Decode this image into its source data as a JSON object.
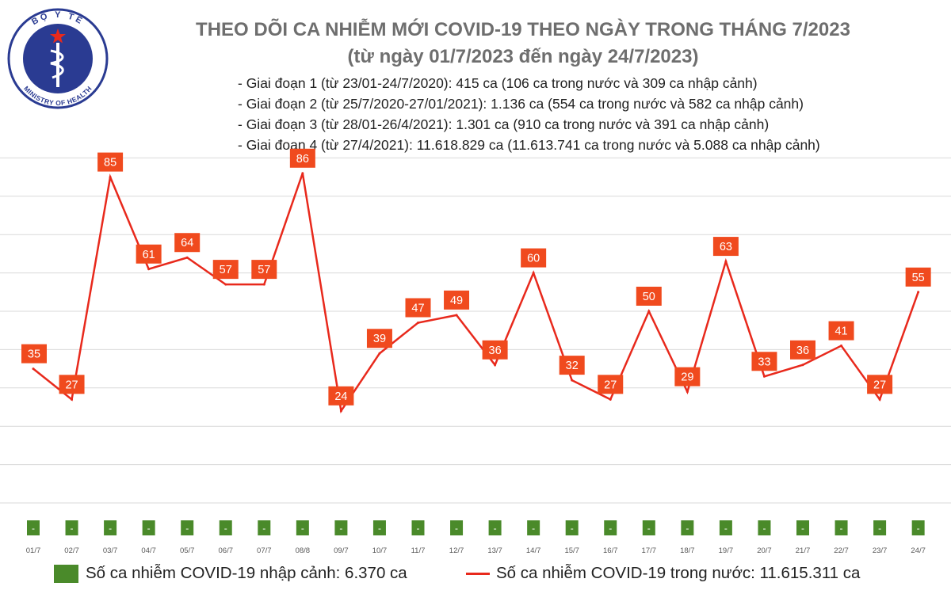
{
  "header": {
    "title": "THEO DÕI CA NHIỄM MỚI COVID-19 THEO NGÀY TRONG THÁNG 7/2023",
    "subtitle": "(từ ngày 01/7/2023 đến ngày 24/7/2023)",
    "phases": [
      "- Giai đoạn 1 (từ 23/01-24/7/2020): 415 ca (106 ca trong nước và 309 ca nhập cảnh)",
      "- Giai đoạn 2 (từ 25/7/2020-27/01/2021): 1.136 ca (554 ca trong nước và 582 ca nhập cảnh)",
      "- Giai đoạn 3 (từ 28/01-26/4/2021): 1.301 ca (910 ca trong nước và 391 ca nhập cảnh)",
      "- Giai đoạn 4 (từ 27/4/2021): 11.618.829 ca (11.613.741 ca trong nước và 5.088 ca nhập cảnh)"
    ]
  },
  "logo": {
    "top_text": "BỘ Y TẾ",
    "bottom_text": "MINISTRY OF HEALTH"
  },
  "chart_data": {
    "type": "line",
    "x": [
      "01/7",
      "02/7",
      "03/7",
      "04/7",
      "05/7",
      "06/7",
      "07/7",
      "08/8",
      "09/7",
      "10/7",
      "11/7",
      "12/7",
      "13/7",
      "14/7",
      "15/7",
      "16/7",
      "17/7",
      "18/7",
      "19/7",
      "20/7",
      "21/7",
      "22/7",
      "23/7",
      "24/7"
    ],
    "series": [
      {
        "name": "Số ca nhiễm COVID-19 trong nước: 11.615.311 ca",
        "type": "line",
        "values": [
          35,
          27,
          85,
          61,
          64,
          57,
          57,
          86,
          24,
          39,
          47,
          49,
          36,
          60,
          32,
          27,
          50,
          29,
          63,
          33,
          36,
          41,
          27,
          55
        ]
      },
      {
        "name": "Số ca nhiễm COVID-19 nhập cảnh: 6.370 ca",
        "type": "bar",
        "values": [
          0,
          0,
          0,
          0,
          0,
          0,
          0,
          0,
          0,
          0,
          0,
          0,
          0,
          0,
          0,
          0,
          0,
          0,
          0,
          0,
          0,
          0,
          0,
          0
        ],
        "labels": [
          "-",
          "-",
          "-",
          "-",
          "-",
          "-",
          "-",
          "-",
          "-",
          "-",
          "-",
          "-",
          "-",
          "-",
          "-",
          "-",
          "-",
          "-",
          "-",
          "-",
          "-",
          "-",
          "-",
          "-"
        ]
      }
    ],
    "ylim": [
      0,
      90
    ],
    "grid": true,
    "legend": "bottom",
    "colors": {
      "domestic": "#e8291c",
      "import": "#4a8a2a",
      "label_bg": "#f04a1e"
    }
  },
  "legend": {
    "import": "Số ca nhiễm COVID-19 nhập cảnh: 6.370 ca",
    "domestic": "Số ca nhiễm COVID-19 trong nước: 11.615.311 ca"
  }
}
